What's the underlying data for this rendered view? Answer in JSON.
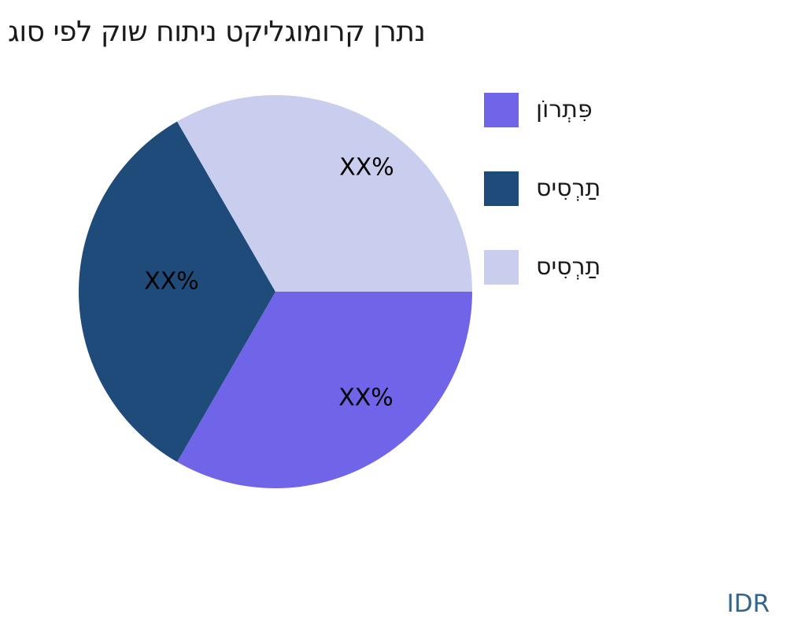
{
  "chart_data": {
    "type": "pie",
    "title": "נתרן קרומוגליקט ניתוח שוק לפי סוג",
    "legend_position": "right",
    "start_angle_deg": 0,
    "direction": "clockwise",
    "footer_currency": "IDR",
    "footer_color": "#33648E",
    "slices": [
      {
        "name": "פִּתְרוֹן",
        "value": 33.33,
        "label": "XX%",
        "color": "#7064E8"
      },
      {
        "name": "תַרְסִיס",
        "value": 33.34,
        "label": "XX%",
        "color": "#1F4B7A"
      },
      {
        "name": "תַרְסִיס",
        "value": 33.33,
        "label": "XX%",
        "color": "#C9CDEE"
      }
    ]
  }
}
